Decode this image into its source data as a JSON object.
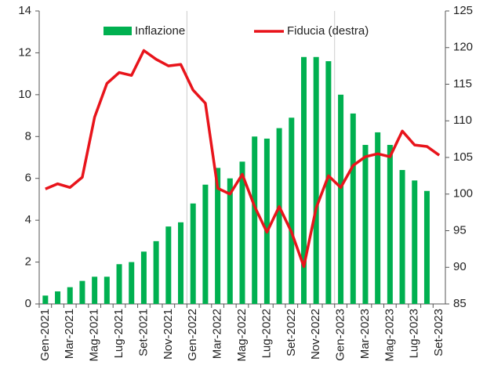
{
  "chart_data": {
    "type": "bar_line",
    "categories": [
      "Gen-2021",
      null,
      "Mar-2021",
      null,
      "Mag-2021",
      null,
      "Lug-2021",
      null,
      "Set-2021",
      null,
      "Nov-2021",
      null,
      "Gen-2022",
      null,
      "Mar-2022",
      null,
      "Mag-2022",
      null,
      "Lug-2022",
      null,
      "Set-2022",
      null,
      "Nov-2022",
      null,
      "Gen-2023",
      null,
      "Mar-2023",
      null,
      "Mag-2023",
      null,
      "Lug-2023",
      null,
      "Set-2023"
    ],
    "series": [
      {
        "name": "Inflazione",
        "color": "#00b050",
        "type": "bar",
        "values": [
          0.4,
          0.6,
          0.8,
          1.1,
          1.3,
          1.3,
          1.9,
          2.0,
          2.5,
          3.0,
          3.7,
          3.9,
          4.8,
          5.7,
          6.5,
          6.0,
          6.8,
          8.0,
          7.9,
          8.4,
          8.9,
          11.8,
          11.8,
          11.6,
          10.0,
          9.1,
          7.6,
          8.2,
          7.6,
          6.4,
          5.9,
          5.4,
          null
        ]
      },
      {
        "name": "Fiducia (destra)",
        "color": "#e8141b",
        "type": "line",
        "axis": "y2",
        "values": [
          100.7,
          101.4,
          100.9,
          102.3,
          110.5,
          115.1,
          116.6,
          116.2,
          119.6,
          118.4,
          117.5,
          117.7,
          114.2,
          112.4,
          100.8,
          100.0,
          102.7,
          98.3,
          94.8,
          98.3,
          94.8,
          90.1,
          98.1,
          102.5,
          100.9,
          103.9,
          105.1,
          105.5,
          105.1,
          108.6,
          106.7,
          106.5,
          105.3
        ]
      }
    ],
    "ylim": [
      0,
      14
    ],
    "yticks": [
      0,
      2,
      4,
      6,
      8,
      10,
      12,
      14
    ],
    "y2lim": [
      85,
      125
    ],
    "y2ticks": [
      85,
      90,
      95,
      100,
      105,
      110,
      115,
      120,
      125
    ]
  }
}
